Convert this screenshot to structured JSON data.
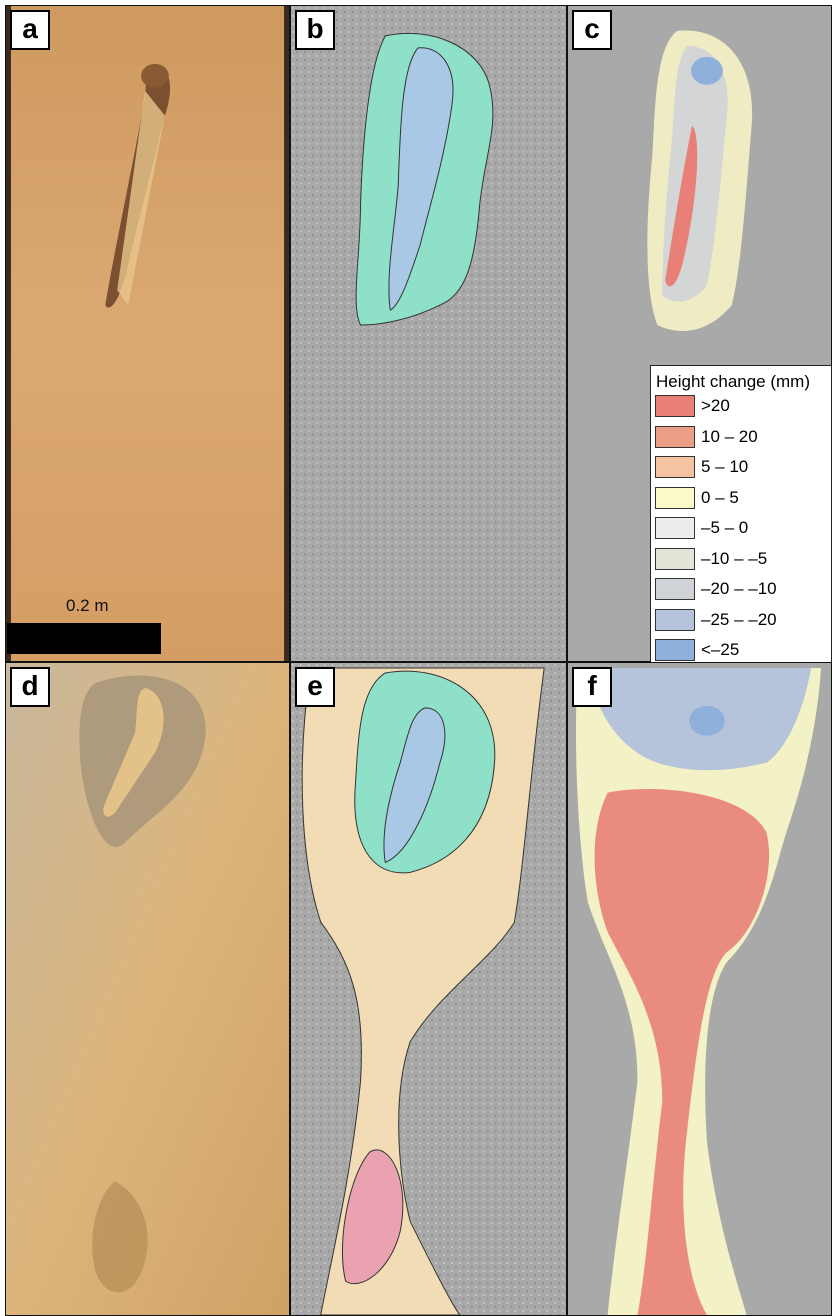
{
  "panels": {
    "a": "a",
    "b": "b",
    "c": "c",
    "d": "d",
    "e": "e",
    "f": "f"
  },
  "scale_bar": {
    "label": "0.2 m"
  },
  "legend": {
    "title": "Height change (mm)",
    "items": [
      {
        "label": ">20",
        "color": "#e98078"
      },
      {
        "label": "10 – 20",
        "color": "#ec9f86"
      },
      {
        "label": "5 – 10",
        "color": "#f4c4a2"
      },
      {
        "label": "0 – 5",
        "color": "#fbf8c9"
      },
      {
        "label": "–5 – 0",
        "color": "#ececec"
      },
      {
        "label": "–10 – –5",
        "color": "#e1e5d8"
      },
      {
        "label": "–20 – –10",
        "color": "#cfd3d8"
      },
      {
        "label": "–25 – –20",
        "color": "#b5c4da"
      },
      {
        "label": "<–25",
        "color": "#8fb0da"
      }
    ]
  },
  "colors": {
    "sand_photo": "#d9a66c",
    "hillshade": "#a9a9a9",
    "cyan_zone": "#8fe0c8",
    "blue_zone": "#a8c8e6",
    "beige_zone": "#f1dcb6",
    "pink_zone": "#eaa2b0"
  }
}
